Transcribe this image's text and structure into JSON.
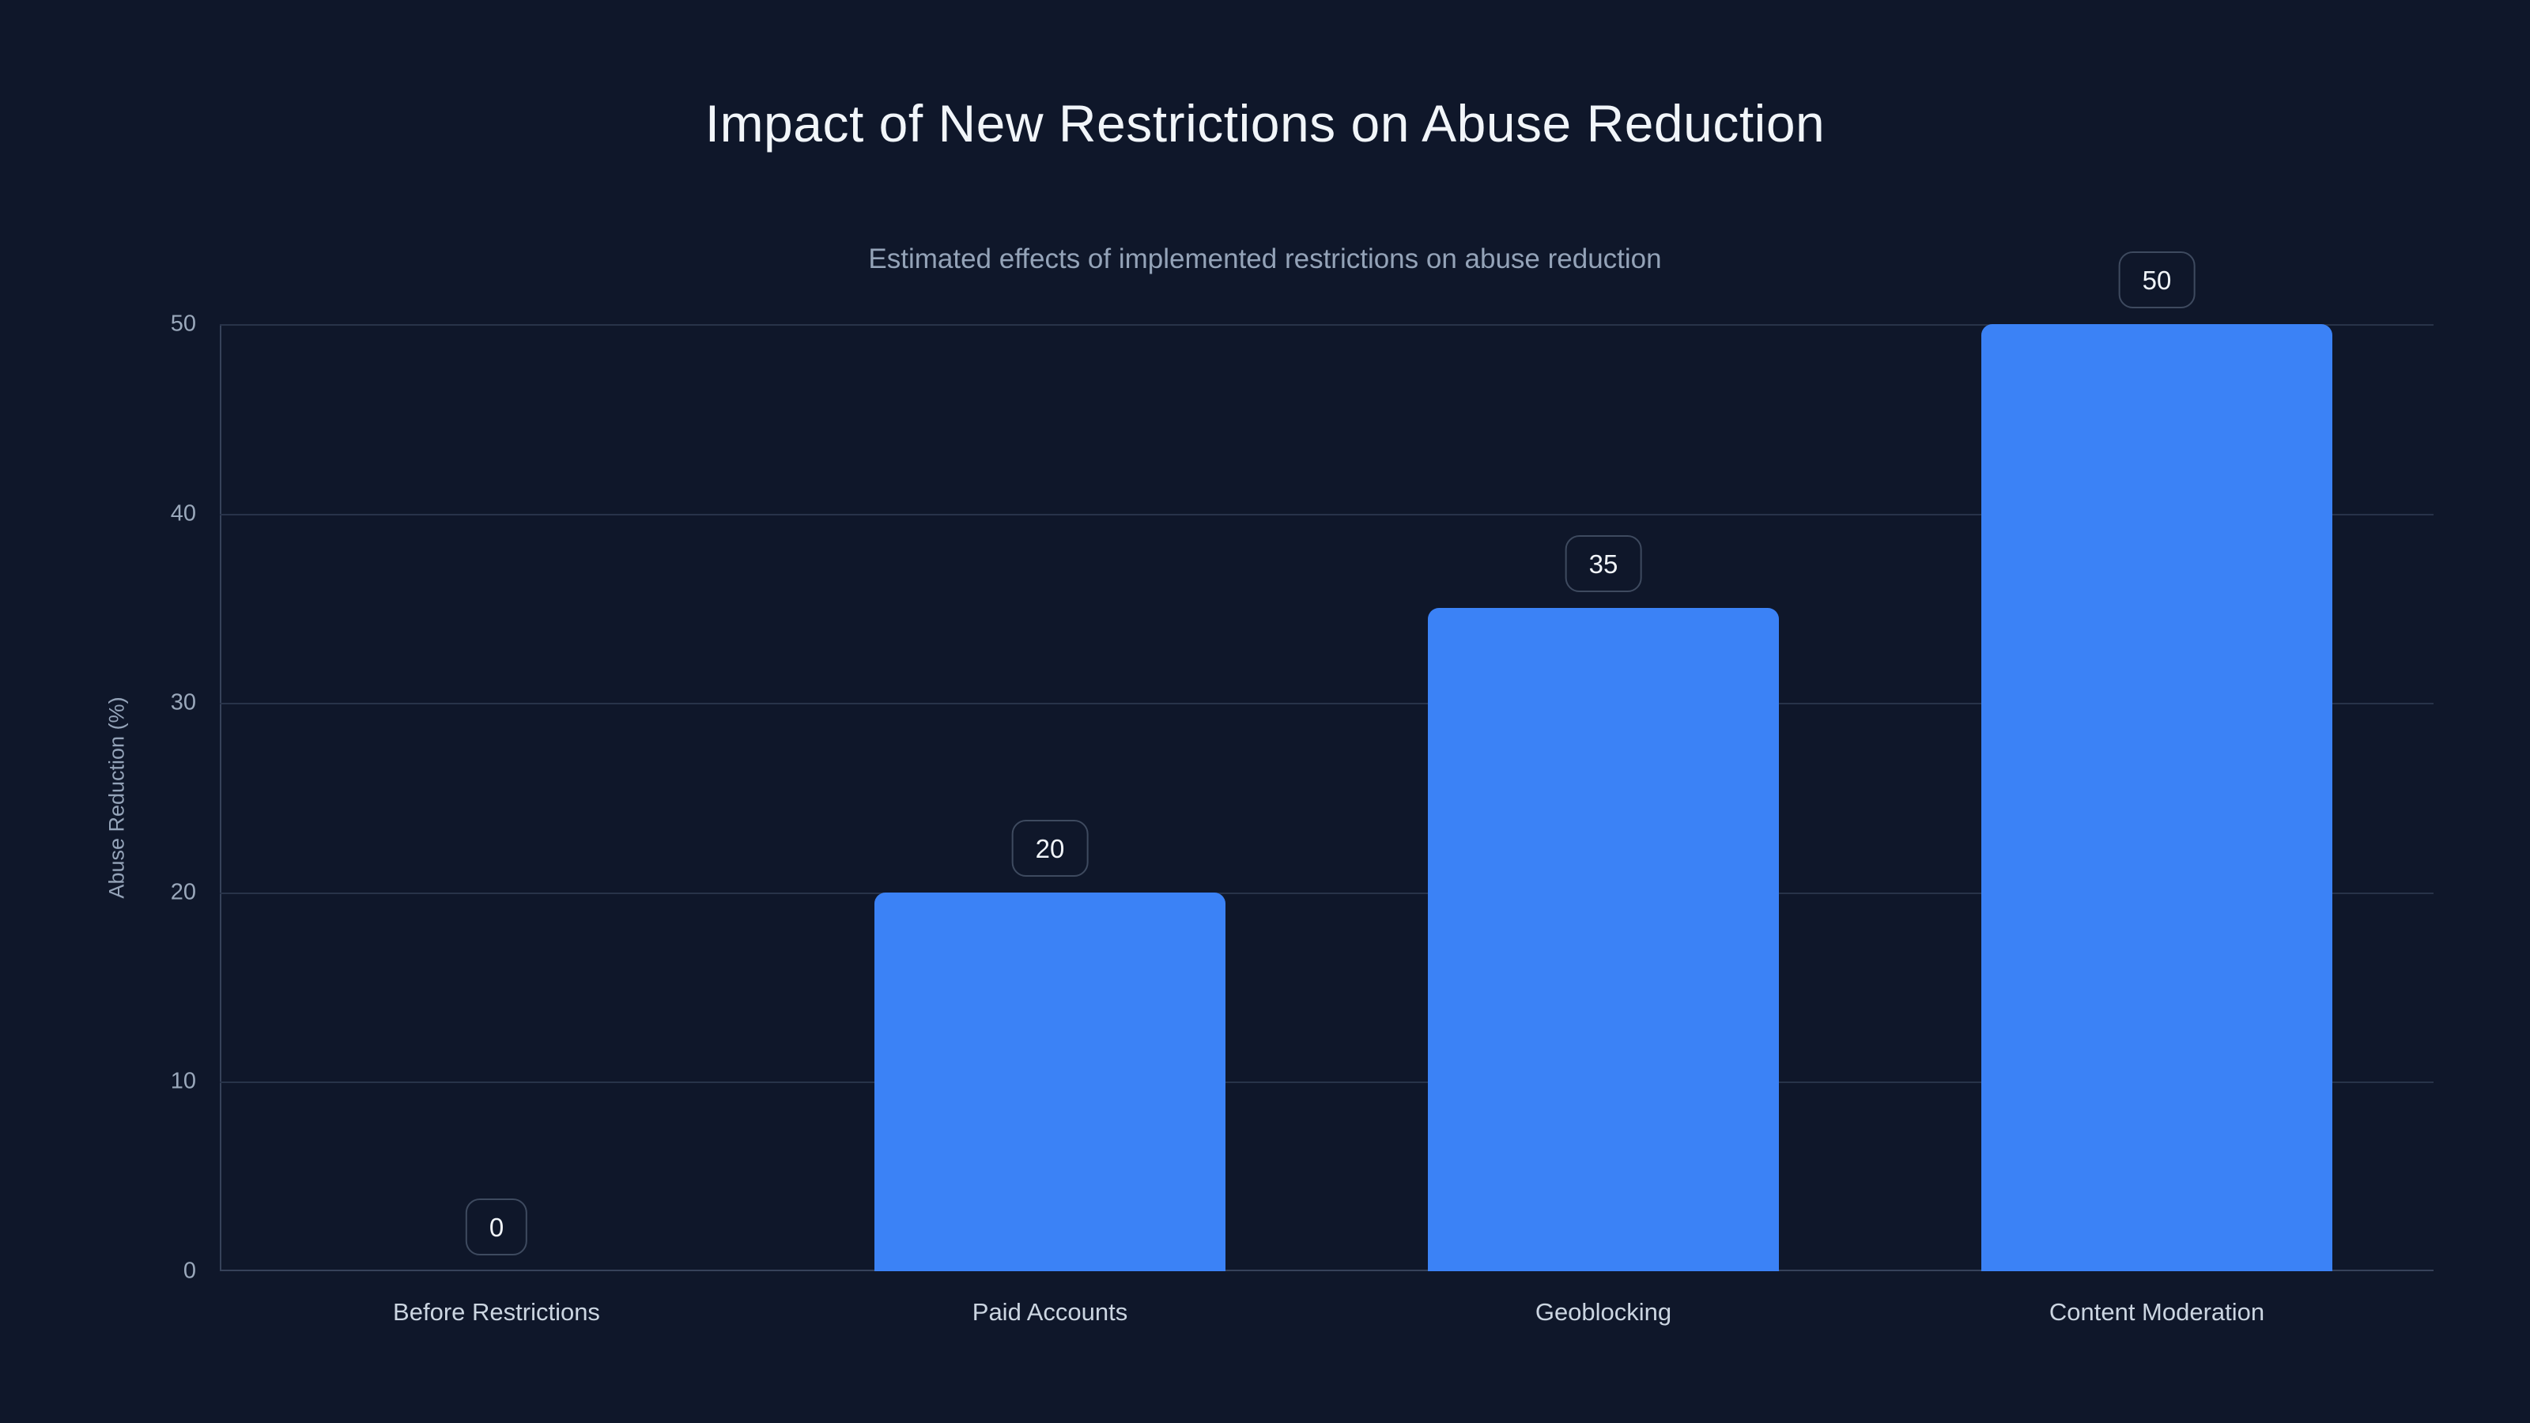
{
  "chart_data": {
    "type": "bar",
    "title": "Impact of New Restrictions on Abuse Reduction",
    "subtitle": "Estimated effects of implemented restrictions on abuse reduction",
    "xlabel": "",
    "ylabel": "Abuse Reduction (%)",
    "categories": [
      "Before Restrictions",
      "Paid Accounts",
      "Geoblocking",
      "Content Moderation"
    ],
    "values": [
      0,
      20,
      35,
      50
    ],
    "value_labels": [
      "0",
      "20",
      "35",
      "50"
    ],
    "ylim": [
      0,
      50
    ],
    "yticks": [
      0,
      10,
      20,
      30,
      40,
      50
    ],
    "grid": true,
    "legend": "none",
    "bar_color": "#3b82f6"
  },
  "colors": {
    "background": "#0f172a",
    "title_text": "#f1f5f9",
    "subtitle_text": "#94a3b8",
    "tick_text": "#9aa8bb",
    "category_text": "#cbd5e1",
    "gridline": "#283349",
    "axis_line": "#36425a",
    "bar_fill": "#3b82f6",
    "value_box_border": "#3e4a5f"
  }
}
